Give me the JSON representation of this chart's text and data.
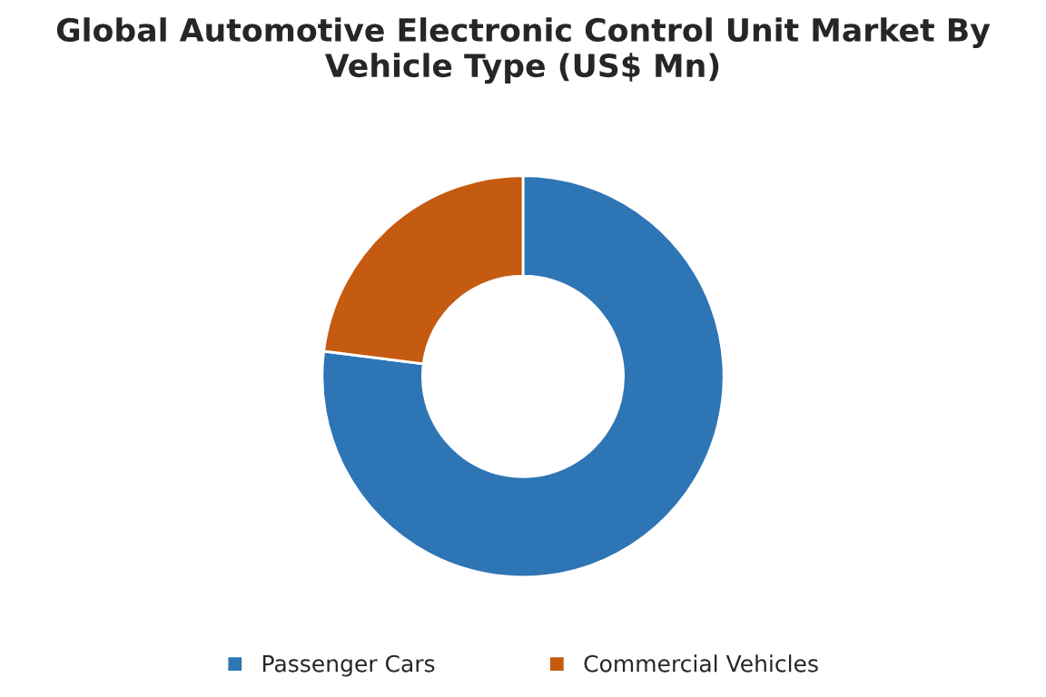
{
  "chart_data": {
    "type": "donut",
    "title": "Global Automotive Electronic Control Unit Market By\nVehicle Type (US$ Mn)",
    "categories": [
      "Passenger Cars",
      "Commercial Vehicles"
    ],
    "values": [
      77,
      23
    ],
    "colors": [
      "#2e75b6",
      "#c55a11"
    ],
    "legend": "bottom"
  }
}
